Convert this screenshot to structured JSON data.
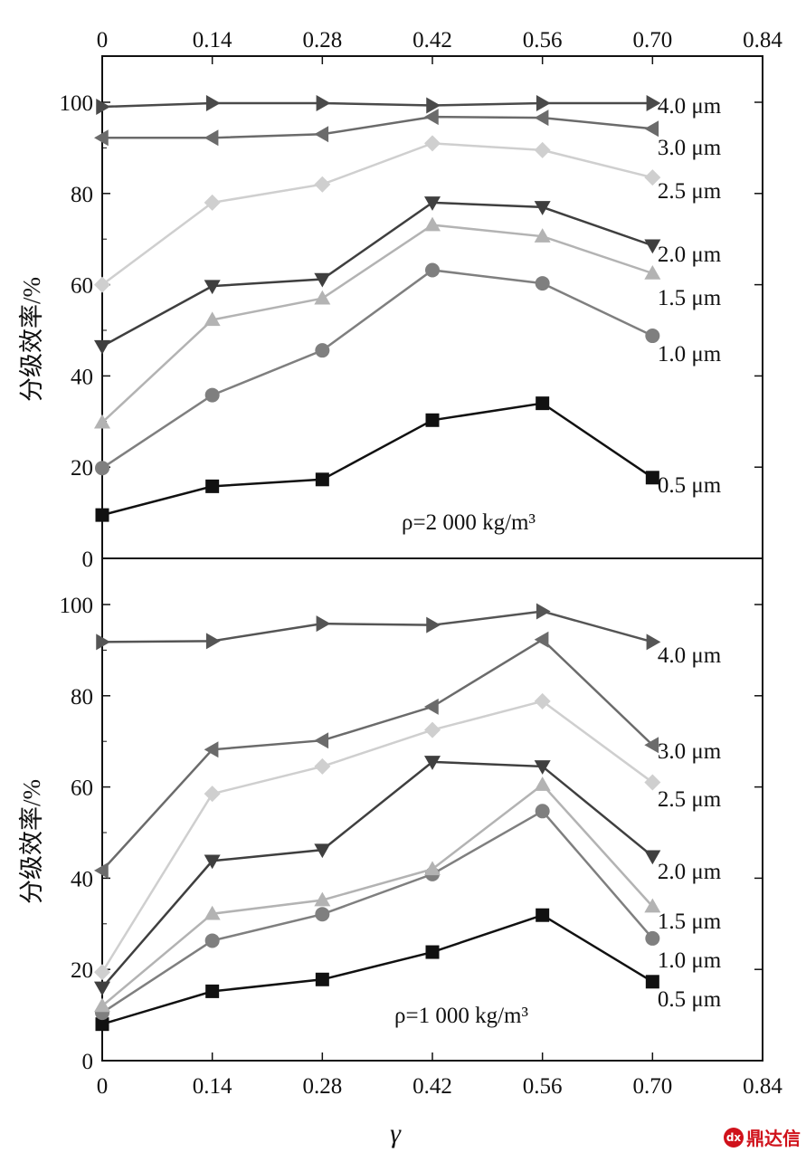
{
  "chart_data": {
    "type": "line",
    "xlabel": "γ",
    "ylabel": "分级效率/%",
    "x_ticks": [
      "0",
      "0.14",
      "0.28",
      "0.42",
      "0.56",
      "0.70",
      "0.84"
    ],
    "x": [
      0,
      0.14,
      0.28,
      0.42,
      0.56,
      0.7
    ],
    "xlim": [
      0,
      0.84
    ],
    "panels": [
      {
        "id": "top",
        "annotation": "ρ=2 000 kg/m³",
        "ylim": [
          0,
          110
        ],
        "y_ticks": [
          "0",
          "20",
          "40",
          "60",
          "80",
          "100"
        ],
        "series": [
          {
            "name": "0.5 μm",
            "marker": "square",
            "color": "#111111",
            "values": [
              9.5,
              15.8,
              17.3,
              30.3,
              34.0,
              17.7
            ]
          },
          {
            "name": "1.0 μm",
            "marker": "circle",
            "color": "#7f7f7f",
            "values": [
              19.8,
              35.8,
              45.6,
              63.2,
              60.3,
              48.8
            ]
          },
          {
            "name": "1.5 μm",
            "marker": "triangle-up",
            "color": "#b3b3b3",
            "values": [
              29.8,
              52.3,
              57.0,
              73.1,
              70.6,
              62.5
            ]
          },
          {
            "name": "2.0 μm",
            "marker": "triangle-down",
            "color": "#3f3f3f",
            "values": [
              46.5,
              59.7,
              61.2,
              78.0,
              77.0,
              68.6
            ]
          },
          {
            "name": "2.5 μm",
            "marker": "diamond",
            "color": "#cfcfcf",
            "values": [
              60.0,
              78.0,
              82.0,
              91.0,
              89.5,
              83.5
            ]
          },
          {
            "name": "3.0 μm",
            "marker": "triangle-left",
            "color": "#6b6b6b",
            "values": [
              92.2,
              92.2,
              93.0,
              96.8,
              96.6,
              94.2
            ]
          },
          {
            "name": "4.0 μm",
            "marker": "triangle-right",
            "color": "#4a4a4a",
            "values": [
              99.0,
              99.8,
              99.8,
              99.3,
              99.8,
              99.8
            ]
          }
        ]
      },
      {
        "id": "bottom",
        "annotation": "ρ=1 000 kg/m³",
        "ylim": [
          0,
          110
        ],
        "y_ticks": [
          "0",
          "20",
          "40",
          "60",
          "80",
          "100"
        ],
        "series": [
          {
            "name": "0.5 μm",
            "marker": "square",
            "color": "#111111",
            "values": [
              8.0,
              15.2,
              17.8,
              23.8,
              31.9,
              17.3
            ]
          },
          {
            "name": "1.0 μm",
            "marker": "circle",
            "color": "#7f7f7f",
            "values": [
              10.5,
              26.3,
              32.1,
              40.9,
              54.7,
              26.8
            ]
          },
          {
            "name": "1.5 μm",
            "marker": "triangle-up",
            "color": "#b3b3b3",
            "values": [
              12.0,
              32.2,
              35.2,
              42.0,
              60.5,
              33.8
            ]
          },
          {
            "name": "2.0 μm",
            "marker": "triangle-down",
            "color": "#3f3f3f",
            "values": [
              16.0,
              43.8,
              46.2,
              65.5,
              64.5,
              44.8
            ]
          },
          {
            "name": "2.5 μm",
            "marker": "diamond",
            "color": "#cfcfcf",
            "values": [
              19.4,
              58.5,
              64.5,
              72.5,
              78.8,
              61.0
            ]
          },
          {
            "name": "3.0 μm",
            "marker": "triangle-left",
            "color": "#6b6b6b",
            "values": [
              41.7,
              68.2,
              70.2,
              77.6,
              92.3,
              69.2
            ]
          },
          {
            "name": "4.0 μm",
            "marker": "triangle-right",
            "color": "#555555",
            "values": [
              91.8,
              92.0,
              95.8,
              95.5,
              98.5,
              91.8
            ]
          }
        ]
      }
    ]
  },
  "watermark": {
    "icon": "logo-icon",
    "icon_text": "dx",
    "text": "鼎达信"
  }
}
